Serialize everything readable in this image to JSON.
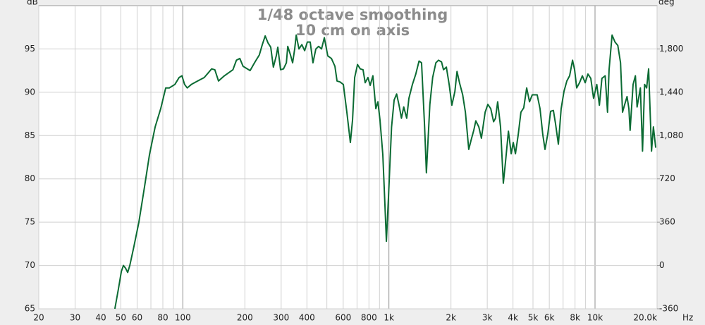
{
  "chart_data": {
    "type": "line",
    "title": "1/48 octave smoothing",
    "subtitle": "10 cm on axis",
    "y_label": "dB",
    "y2_label": "deg",
    "x_label": "Hz",
    "xscale": "log",
    "grid": true,
    "color": "#0b6b33",
    "xlim": [
      20,
      20000
    ],
    "xticks": [
      20,
      30,
      40,
      50,
      60,
      80,
      100,
      200,
      300,
      400,
      600,
      800,
      {
        "value": 1000,
        "label": "1k"
      },
      {
        "value": 2000,
        "label": "2k"
      },
      {
        "value": 3000,
        "label": "3k"
      },
      {
        "value": 4000,
        "label": "4k"
      },
      {
        "value": 5000,
        "label": "5k"
      },
      {
        "value": 6000,
        "label": "6k"
      },
      {
        "value": 8000,
        "label": "8k"
      },
      {
        "value": 10000,
        "label": "10k"
      },
      {
        "value": 20000,
        "label": "20.0k"
      }
    ],
    "xminor": [
      70,
      90,
      500,
      700,
      900,
      7000,
      9000
    ],
    "ylim": [
      65,
      100
    ],
    "yticks": [
      65,
      70,
      75,
      80,
      85,
      90,
      95
    ],
    "y2lim": [
      -360,
      2160
    ],
    "y2ticks": [
      -360,
      0,
      360,
      720,
      {
        "value": 1080,
        "label": "1,080"
      },
      {
        "value": 1440,
        "label": "1,440"
      },
      {
        "value": 1800,
        "label": "1,800"
      }
    ],
    "x": [
      46.8,
      48.7,
      50.3,
      51.5,
      52.7,
      54.0,
      55.3,
      57.9,
      61.2,
      65.2,
      68.9,
      73.4,
      78.1,
      82.6,
      85.9,
      91.5,
      95.9,
      99.0,
      102,
      105,
      110,
      118,
      127,
      138,
      143,
      149,
      159,
      175,
      182,
      189,
      196,
      212,
      224,
      235,
      243,
      251,
      259,
      267,
      275,
      284,
      289,
      298,
      308,
      318,
      323,
      333,
      341,
      349,
      355,
      366,
      378,
      390,
      402,
      415,
      428,
      442,
      456,
      471,
      486,
      505,
      526,
      547,
      560,
      578,
      601,
      625,
      650,
      666,
      682,
      704,
      726,
      749,
      767,
      791,
      811,
      836,
      864,
      884,
      905,
      934,
      956,
      972,
      995,
      1030,
      1060,
      1090,
      1120,
      1150,
      1180,
      1220,
      1250,
      1300,
      1350,
      1400,
      1440,
      1490,
      1520,
      1580,
      1630,
      1690,
      1740,
      1800,
      1840,
      1900,
      1960,
      2020,
      2090,
      2140,
      2200,
      2280,
      2350,
      2440,
      2500,
      2580,
      2640,
      2730,
      2810,
      2930,
      3020,
      3120,
      3220,
      3290,
      3370,
      3480,
      3590,
      3680,
      3800,
      3920,
      4010,
      4110,
      4240,
      4370,
      4510,
      4660,
      4810,
      4960,
      5240,
      5410,
      5580,
      5720,
      5900,
      6090,
      6280,
      6430,
      6640,
      6850,
      7070,
      7300,
      7530,
      7780,
      7960,
      8150,
      8410,
      8680,
      8960,
      9240,
      9540,
      9840,
      10200,
      10500,
      10800,
      11200,
      11500,
      11700,
      12100,
      12500,
      12900,
      13300,
      13600,
      13900,
      14300,
      14600,
      14800,
      15300,
      15700,
      16000,
      16600,
      17000,
      17400,
      17800,
      18200,
      18800,
      19200,
      19700
    ],
    "values": [
      65.0,
      67.3,
      69.3,
      70.0,
      69.7,
      69.2,
      70.0,
      72.2,
      75.0,
      79.1,
      82.8,
      86.0,
      88.1,
      90.5,
      90.5,
      90.9,
      91.7,
      91.9,
      90.9,
      90.5,
      90.9,
      91.3,
      91.7,
      92.7,
      92.6,
      91.3,
      91.9,
      92.6,
      93.7,
      93.9,
      93.0,
      92.5,
      93.5,
      94.3,
      95.5,
      96.5,
      95.7,
      95.2,
      92.9,
      94.2,
      95.2,
      92.6,
      92.7,
      93.4,
      95.3,
      94.3,
      93.4,
      95.0,
      96.6,
      95.0,
      95.5,
      94.8,
      95.8,
      95.8,
      93.4,
      95.0,
      95.3,
      95.0,
      96.3,
      94.2,
      93.9,
      93.0,
      91.3,
      91.2,
      90.9,
      87.7,
      84.2,
      86.8,
      91.7,
      93.2,
      92.7,
      92.6,
      91.1,
      91.7,
      90.8,
      91.9,
      88.1,
      88.9,
      86.8,
      82.8,
      77.1,
      72.8,
      77.9,
      86.0,
      89.1,
      89.8,
      88.5,
      87.0,
      88.3,
      87.0,
      89.3,
      90.9,
      92.1,
      93.6,
      93.4,
      86.0,
      80.7,
      88.6,
      91.7,
      93.4,
      93.7,
      93.5,
      92.6,
      92.9,
      90.9,
      88.5,
      90.1,
      92.4,
      91.1,
      89.7,
      87.7,
      83.4,
      84.4,
      85.6,
      86.7,
      86.0,
      84.7,
      87.7,
      88.6,
      88.1,
      86.6,
      87.0,
      88.9,
      86.0,
      79.5,
      82.0,
      85.5,
      82.9,
      84.2,
      82.9,
      85.1,
      87.7,
      88.2,
      90.5,
      88.9,
      89.7,
      89.7,
      88.1,
      85.1,
      83.4,
      85.2,
      87.8,
      87.9,
      86.4,
      84.0,
      88.1,
      90.1,
      91.3,
      91.9,
      93.7,
      92.6,
      90.5,
      91.1,
      91.9,
      91.1,
      92.1,
      91.6,
      89.3,
      90.9,
      88.5,
      91.6,
      91.9,
      87.7,
      92.6,
      96.6,
      95.8,
      95.4,
      93.4,
      87.7,
      88.5,
      89.5,
      88.1,
      85.6,
      90.9,
      91.9,
      88.3,
      90.5,
      83.2,
      90.9,
      90.5,
      92.7,
      83.2,
      86.0,
      83.6
    ]
  }
}
